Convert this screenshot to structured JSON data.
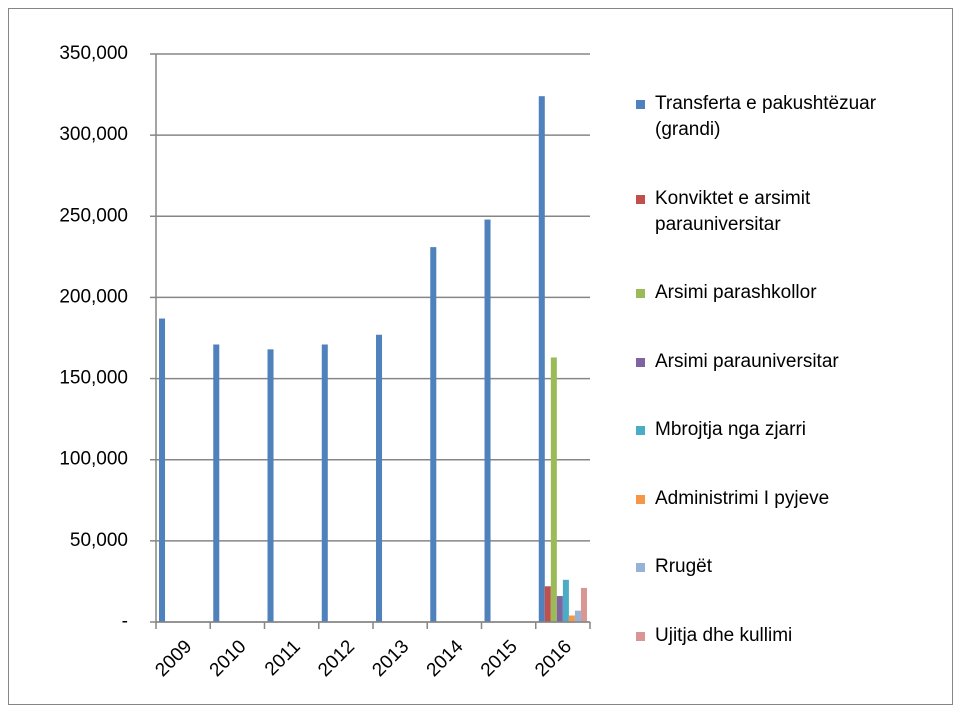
{
  "chart_data": {
    "type": "bar",
    "categories": [
      "2009",
      "2010",
      "2011",
      "2012",
      "2013",
      "2014",
      "2015",
      "2016"
    ],
    "series": [
      {
        "name": "Transferta e pakushtëzuar (grandi)",
        "color": "#4f81bd",
        "values": [
          187000,
          171000,
          168000,
          171000,
          177000,
          231000,
          248000,
          324000
        ]
      },
      {
        "name": "Konviktet e arsimit parauniversitar",
        "color": "#c0504d",
        "values": [
          null,
          null,
          null,
          null,
          null,
          null,
          null,
          22000
        ]
      },
      {
        "name": "Arsimi parashkollor",
        "color": "#9bbb59",
        "values": [
          null,
          null,
          null,
          null,
          null,
          null,
          null,
          163000
        ]
      },
      {
        "name": "Arsimi parauniversitar",
        "color": "#8064a2",
        "values": [
          null,
          null,
          null,
          null,
          null,
          null,
          null,
          16000
        ]
      },
      {
        "name": "Mbrojtja nga zjarri",
        "color": "#4bacc6",
        "values": [
          null,
          null,
          null,
          null,
          null,
          null,
          null,
          26000
        ]
      },
      {
        "name": "Administrimi I pyjeve",
        "color": "#f79646",
        "values": [
          null,
          null,
          null,
          null,
          null,
          null,
          null,
          4000
        ]
      },
      {
        "name": "Rrugët",
        "color": "#95b3d7",
        "values": [
          null,
          null,
          null,
          null,
          null,
          null,
          null,
          7000
        ]
      },
      {
        "name": "Ujitja dhe kullimi",
        "color": "#d99694",
        "values": [
          null,
          null,
          null,
          null,
          null,
          null,
          null,
          21000
        ]
      }
    ],
    "ylim": [
      0,
      350000
    ],
    "yticks": [
      {
        "value": 0,
        "label": "-"
      },
      {
        "value": 50000,
        "label": "50,000"
      },
      {
        "value": 100000,
        "label": "100,000"
      },
      {
        "value": 150000,
        "label": "150,000"
      },
      {
        "value": 200000,
        "label": "200,000"
      },
      {
        "value": 250000,
        "label": "250,000"
      },
      {
        "value": 300000,
        "label": "300,000"
      },
      {
        "value": 350000,
        "label": "350,000"
      }
    ],
    "grid": true,
    "legend": "right"
  }
}
